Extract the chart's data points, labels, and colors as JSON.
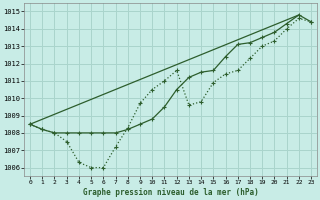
{
  "xlabel": "Graphe pression niveau de la mer (hPa)",
  "bg_color": "#c8ece6",
  "grid_color": "#aad4cc",
  "line_color": "#2d5e2d",
  "ylim": [
    1005.5,
    1015.5
  ],
  "xlim": [
    -0.5,
    23.5
  ],
  "yticks": [
    1006,
    1007,
    1008,
    1009,
    1010,
    1011,
    1012,
    1013,
    1014,
    1015
  ],
  "xticks": [
    0,
    1,
    2,
    3,
    4,
    5,
    6,
    7,
    8,
    9,
    10,
    11,
    12,
    13,
    14,
    15,
    16,
    17,
    18,
    19,
    20,
    21,
    22,
    23
  ],
  "line_dotted": {
    "x": [
      0,
      1,
      2,
      3,
      4,
      5,
      6,
      7,
      8,
      9,
      10,
      11,
      12,
      13,
      14,
      15,
      16,
      17,
      18,
      19,
      20,
      21,
      22,
      23
    ],
    "y": [
      1008.5,
      1008.2,
      1008.0,
      1007.5,
      1006.3,
      1006.0,
      1006.0,
      1007.2,
      1008.3,
      1009.7,
      1010.5,
      1011.0,
      1011.6,
      1009.6,
      1009.8,
      1010.9,
      1011.4,
      1011.6,
      1012.3,
      1013.0,
      1013.3,
      1014.0,
      1014.6,
      1014.4
    ]
  },
  "line_solid_markers": {
    "x": [
      0,
      1,
      2,
      3,
      4,
      5,
      6,
      7,
      8,
      9,
      10,
      11,
      12,
      13,
      14,
      15,
      16,
      17,
      18,
      19,
      20,
      21,
      22,
      23
    ],
    "y": [
      1008.5,
      1008.2,
      1008.0,
      1008.0,
      1008.0,
      1008.0,
      1008.0,
      1008.0,
      1008.2,
      1008.5,
      1008.8,
      1009.5,
      1010.5,
      1011.2,
      1011.5,
      1011.6,
      1012.4,
      1013.1,
      1013.2,
      1013.5,
      1013.8,
      1014.3,
      1014.8,
      1014.4
    ]
  },
  "line_straight": {
    "x": [
      0,
      22
    ],
    "y": [
      1008.5,
      1014.8
    ]
  }
}
